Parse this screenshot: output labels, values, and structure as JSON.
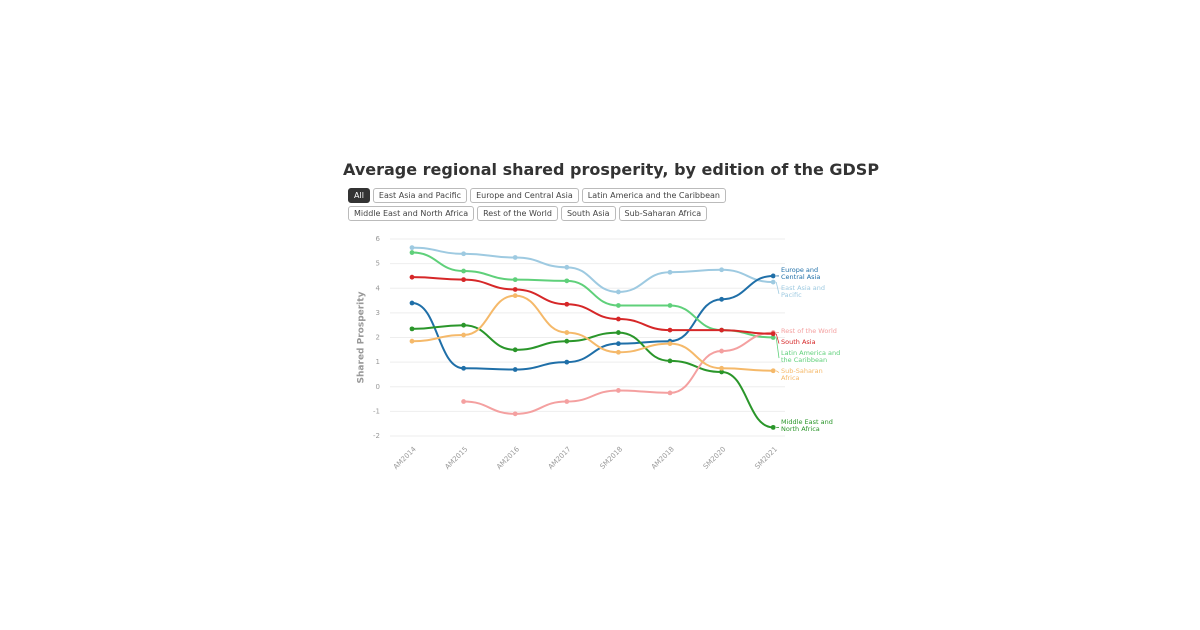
{
  "chart_data": {
    "type": "line",
    "title": "Average regional shared prosperity, by edition of the GDSP",
    "filters": [
      "All",
      "East Asia and Pacific",
      "Europe and Central Asia",
      "Latin America and the Caribbean",
      "Middle East and North Africa",
      "Rest of the World",
      "South Asia",
      "Sub-Saharan Africa"
    ],
    "y_label": "Shared Prosperity",
    "categories": [
      "AM2014",
      "AM2015",
      "AM2016",
      "AM2017",
      "SM2018",
      "AM2018",
      "SM2020",
      "SM2021"
    ],
    "ylim": [
      -2,
      6
    ],
    "yticks": [
      -2,
      -1,
      0,
      1,
      2,
      3,
      4,
      5,
      6
    ],
    "grid": true,
    "series": [
      {
        "name": "East Asia and Pacific",
        "color": "#9ecae1",
        "values": [
          5.65,
          5.4,
          5.25,
          4.85,
          3.85,
          4.65,
          4.75,
          4.25
        ]
      },
      {
        "name": "Europe and Central Asia",
        "color": "#1f6fa8",
        "values": [
          3.4,
          0.75,
          0.7,
          1.0,
          1.75,
          1.85,
          3.55,
          4.5
        ]
      },
      {
        "name": "Latin America and the Caribbean",
        "color": "#5fd07a",
        "values": [
          5.45,
          4.7,
          4.35,
          4.3,
          3.3,
          3.3,
          2.3,
          2.0
        ]
      },
      {
        "name": "Middle East and North Africa",
        "color": "#2a962a",
        "values": [
          2.35,
          2.5,
          1.5,
          1.85,
          2.2,
          1.05,
          0.6,
          -1.65
        ]
      },
      {
        "name": "Rest of the World",
        "color": "#f4a0a0",
        "values": [
          null,
          -0.6,
          -1.1,
          -0.6,
          -0.15,
          -0.25,
          1.45,
          2.2
        ]
      },
      {
        "name": "South Asia",
        "color": "#d62728",
        "values": [
          4.45,
          4.35,
          3.95,
          3.35,
          2.75,
          2.3,
          2.3,
          2.15
        ]
      },
      {
        "name": "Sub-Saharan Africa",
        "color": "#f5b96a",
        "values": [
          1.85,
          2.1,
          3.7,
          2.2,
          1.4,
          1.75,
          0.75,
          0.65
        ]
      }
    ]
  }
}
